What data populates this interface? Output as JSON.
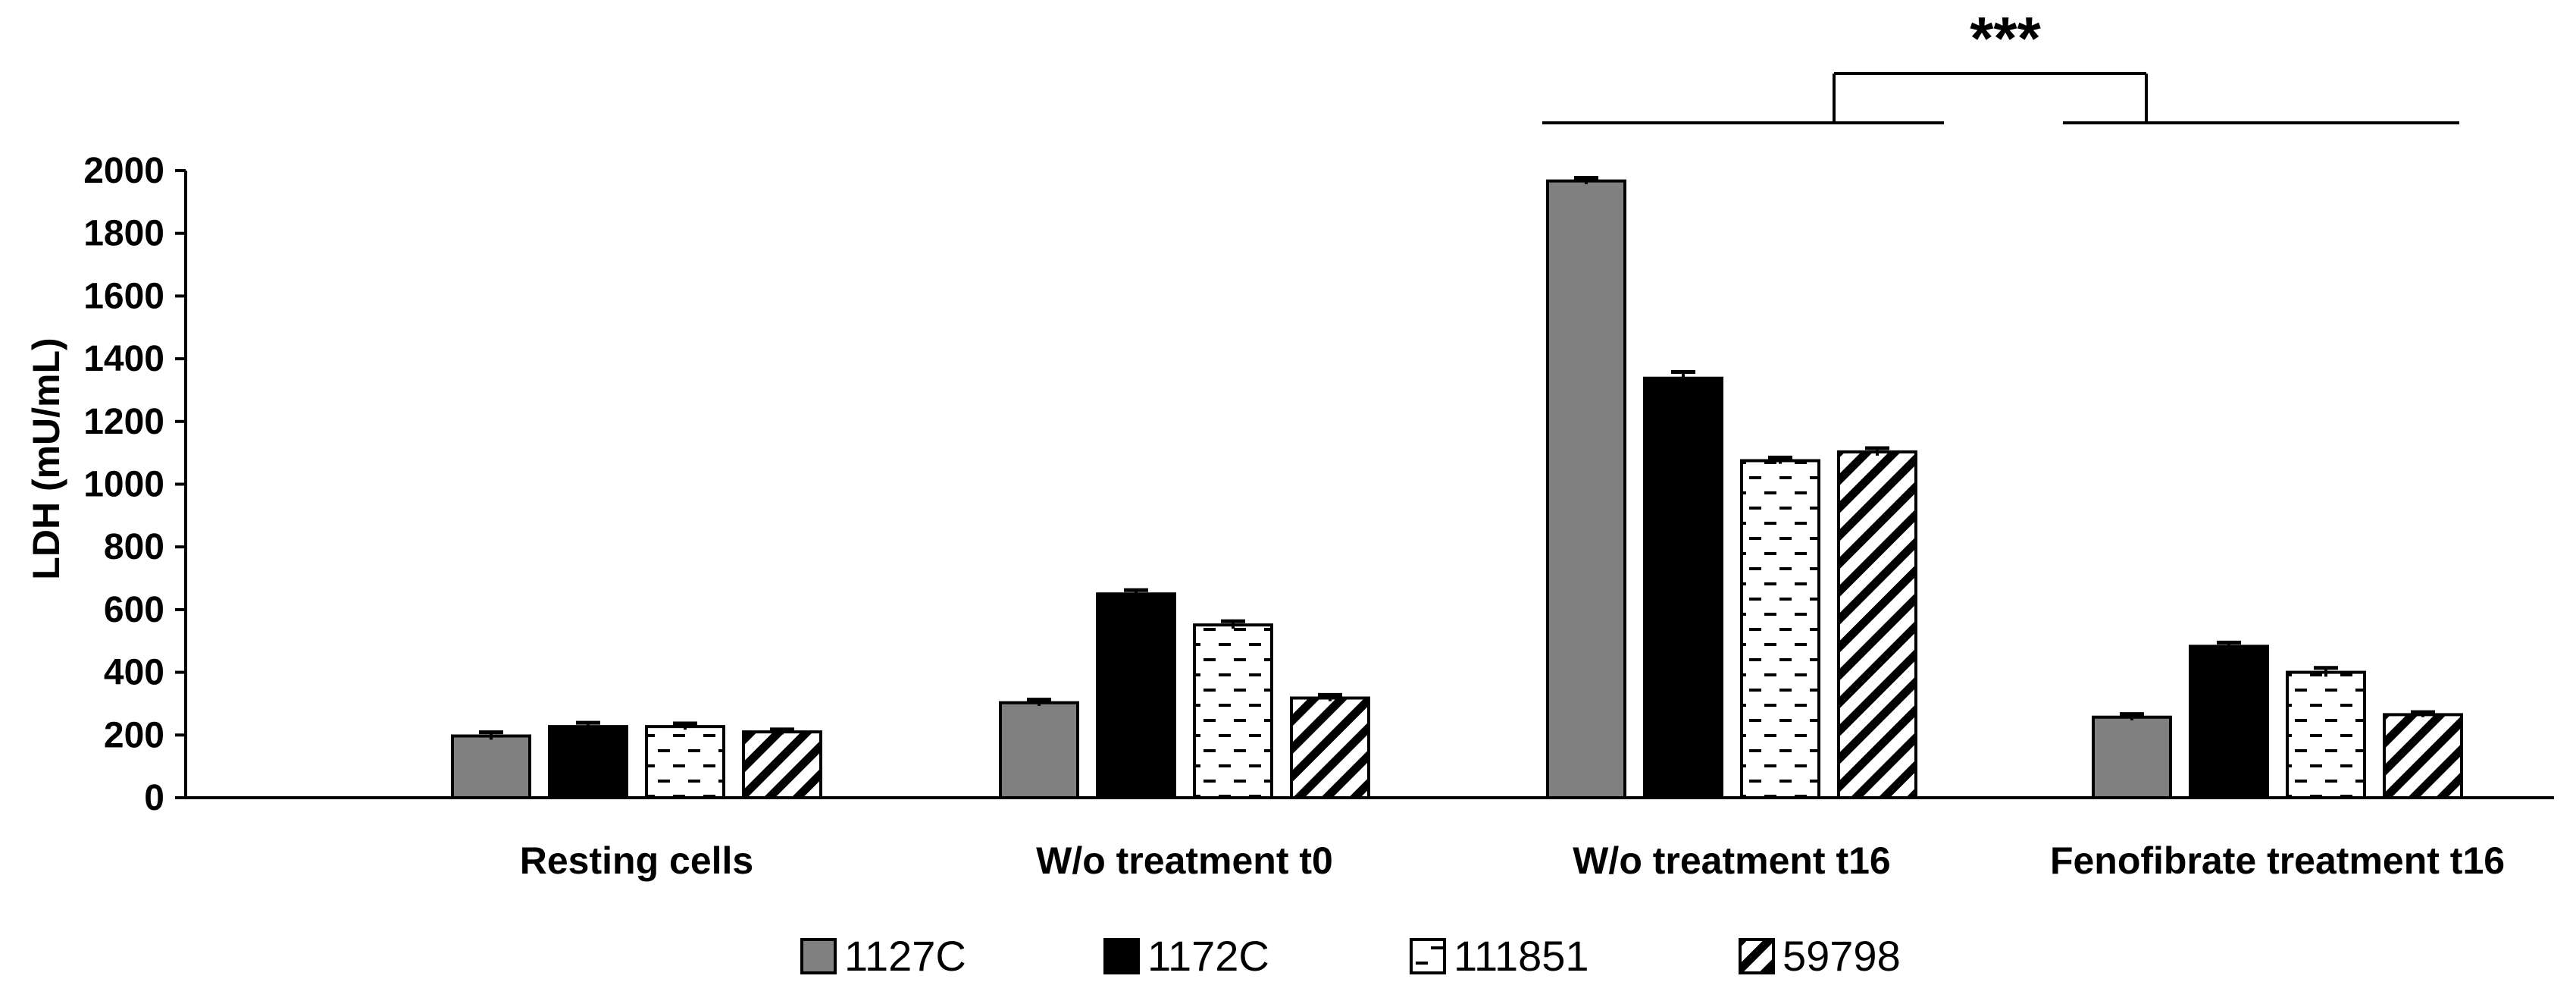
{
  "chart_data": {
    "type": "bar",
    "title": "",
    "xlabel": "",
    "ylabel": "LDH  (mU/mL)",
    "ylim": [
      0,
      2000
    ],
    "yticks": [
      0,
      200,
      400,
      600,
      800,
      1000,
      1200,
      1400,
      1600,
      1800,
      2000
    ],
    "grid": false,
    "legend_position": "bottom",
    "categories": [
      "Resting cells",
      "W/o treatment t0",
      "W/o treatment t16",
      "Fenofibrate treatment t16"
    ],
    "series": [
      {
        "name": "1127C",
        "fill": "gray",
        "values": [
          197,
          303,
          1967,
          257
        ],
        "errors": [
          12,
          10,
          10,
          10
        ]
      },
      {
        "name": "1172C",
        "fill": "black",
        "values": [
          227,
          650,
          1338,
          483
        ],
        "errors": [
          12,
          12,
          20,
          12
        ]
      },
      {
        "name": "111851",
        "fill": "dash",
        "values": [
          227,
          551,
          1075,
          400
        ],
        "errors": [
          10,
          12,
          10,
          14
        ]
      },
      {
        "name": "59798",
        "fill": "diagonal",
        "values": [
          210,
          318,
          1103,
          265
        ],
        "errors": [
          8,
          10,
          12,
          8
        ]
      }
    ],
    "annotations": [
      {
        "text": "***",
        "between": [
          "W/o treatment t16",
          "Fenofibrate treatment t16"
        ]
      }
    ]
  },
  "colors": {
    "gray": "#808080",
    "black": "#000000",
    "white": "#ffffff",
    "axis": "#000000"
  }
}
